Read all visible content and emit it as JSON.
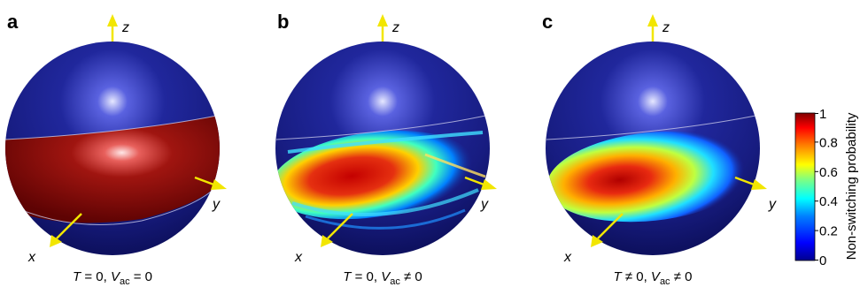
{
  "panels": [
    {
      "letter": "a",
      "caption": {
        "v1": "T",
        "eq1": " = 0, ",
        "v2": "V",
        "sub": "ac",
        "eq2": " = 0"
      }
    },
    {
      "letter": "b",
      "caption": {
        "v1": "T",
        "eq1": " = 0, ",
        "v2": "V",
        "sub": "ac",
        "eq2": " ≠ 0"
      }
    },
    {
      "letter": "c",
      "caption": {
        "v1": "T",
        "eq1": " ≠ 0, ",
        "v2": "V",
        "sub": "ac",
        "eq2": " ≠ 0"
      }
    }
  ],
  "axes": {
    "x": "x",
    "y": "y",
    "z": "z"
  },
  "colorbar": {
    "title": "Non-switching probability",
    "ticks": [
      "0",
      "0.2",
      "0.4",
      "0.6",
      "0.8",
      "1"
    ],
    "colors": [
      "#00008f",
      "#0000ff",
      "#0080ff",
      "#00ffff",
      "#80ff80",
      "#ffff00",
      "#ff8000",
      "#ff0000",
      "#800000"
    ]
  },
  "colors": {
    "sphere": "#1a1f8c",
    "axis_arrow": "#f2e600"
  }
}
